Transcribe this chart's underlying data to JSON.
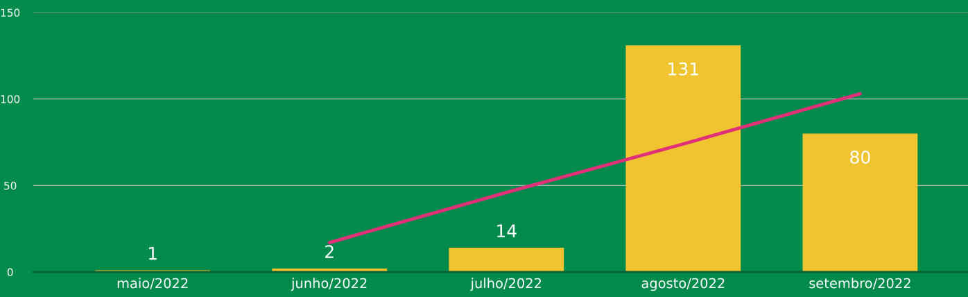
{
  "chart_data": {
    "type": "bar",
    "categories": [
      "maio/2022",
      "junho/2022",
      "julho/2022",
      "agosto/2022",
      "setembro/2022"
    ],
    "series": [
      {
        "color": "#f0c330",
        "values": [
          1,
          2,
          14,
          131,
          80
        ],
        "value_labels": [
          "1",
          "2",
          "14",
          "131",
          "80"
        ]
      },
      {
        "type": "line",
        "color": "#e0307a",
        "values": [
          null,
          17,
          46,
          74,
          103
        ]
      }
    ],
    "ylim": [
      0,
      150
    ],
    "yticks": [
      0,
      50,
      100,
      150
    ],
    "grid": "y"
  }
}
